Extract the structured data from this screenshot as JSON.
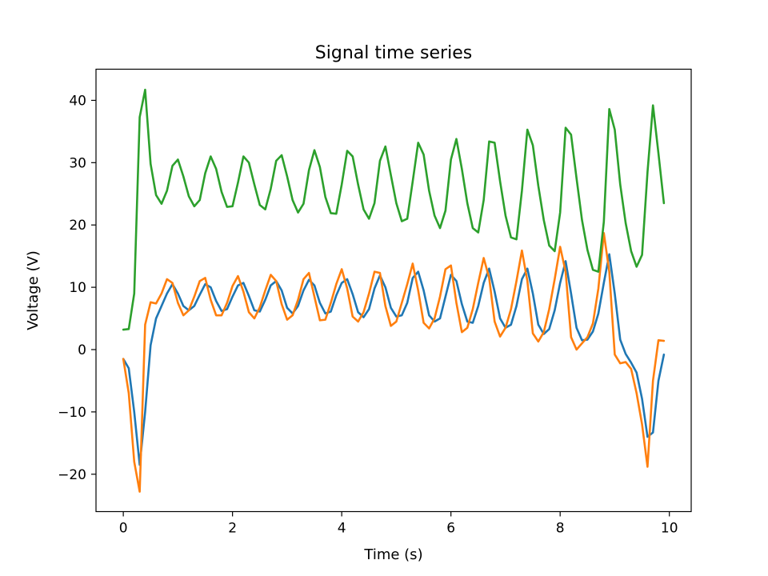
{
  "chart_data": {
    "type": "line",
    "title": "Signal time series",
    "xlabel": "Time (s)",
    "ylabel": "Voltage (V)",
    "xlim": [
      -0.5,
      10.4
    ],
    "ylim": [
      -26,
      45
    ],
    "xticks": [
      0,
      2,
      4,
      6,
      8,
      10
    ],
    "yticks": [
      -20,
      -10,
      0,
      10,
      20,
      30,
      40
    ],
    "grid": false,
    "legend": "none",
    "x": [
      0.0,
      0.1,
      0.2,
      0.3,
      0.4,
      0.5,
      0.6,
      0.7,
      0.8,
      0.9,
      1.0,
      1.1,
      1.2,
      1.3,
      1.4,
      1.5,
      1.6,
      1.7,
      1.8,
      1.9,
      2.0,
      2.1,
      2.2,
      2.3,
      2.4,
      2.5,
      2.6,
      2.7,
      2.8,
      2.9,
      3.0,
      3.1,
      3.2,
      3.3,
      3.4,
      3.5,
      3.6,
      3.7,
      3.8,
      3.9,
      4.0,
      4.1,
      4.2,
      4.3,
      4.4,
      4.5,
      4.6,
      4.7,
      4.8,
      4.9,
      5.0,
      5.1,
      5.2,
      5.3,
      5.4,
      5.5,
      5.6,
      5.7,
      5.8,
      5.9,
      6.0,
      6.1,
      6.2,
      6.3,
      6.4,
      6.5,
      6.6,
      6.7,
      6.8,
      6.9,
      7.0,
      7.1,
      7.2,
      7.3,
      7.4,
      7.5,
      7.6,
      7.7,
      7.8,
      7.9,
      8.0,
      8.1,
      8.2,
      8.3,
      8.4,
      8.5,
      8.6,
      8.7,
      8.8,
      8.9,
      9.0,
      9.1,
      9.2,
      9.3,
      9.4,
      9.5,
      9.6,
      9.7,
      9.8,
      9.9
    ],
    "series": [
      {
        "color": "#1f77b4",
        "values": [
          -1.5,
          -3.0,
          -10.0,
          -18.5,
          -10.0,
          0.7,
          5.0,
          7.0,
          9.0,
          10.5,
          9.0,
          7.0,
          6.3,
          7.0,
          8.8,
          10.5,
          10.0,
          7.8,
          6.2,
          6.5,
          8.5,
          10.3,
          10.7,
          8.6,
          6.3,
          6.1,
          8.0,
          10.3,
          11.0,
          9.5,
          6.7,
          5.8,
          7.0,
          9.5,
          11.2,
          10.3,
          7.5,
          5.8,
          6.1,
          8.7,
          10.7,
          11.3,
          8.9,
          6.0,
          5.2,
          6.5,
          9.8,
          11.9,
          10.0,
          6.7,
          5.3,
          5.5,
          7.5,
          11.5,
          12.5,
          9.5,
          5.5,
          4.5,
          5.0,
          8.5,
          12.0,
          11.0,
          7.3,
          4.5,
          4.3,
          7.0,
          10.7,
          13.0,
          9.3,
          5.0,
          3.5,
          4.0,
          7.0,
          11.3,
          13.0,
          9.0,
          4.0,
          2.5,
          3.3,
          6.3,
          10.7,
          14.2,
          9.0,
          3.5,
          1.5,
          1.6,
          2.9,
          5.8,
          10.7,
          15.3,
          9.0,
          1.6,
          -0.7,
          -2.1,
          -3.7,
          -7.9,
          -14.0,
          -13.3,
          -5.0,
          -0.8
        ]
      },
      {
        "color": "#ff7f0e",
        "values": [
          -1.5,
          -7.0,
          -18.0,
          -22.8,
          4.0,
          7.6,
          7.4,
          9.0,
          11.3,
          10.7,
          7.5,
          5.5,
          6.3,
          8.5,
          11.0,
          11.5,
          8.0,
          5.5,
          5.5,
          7.5,
          10.2,
          11.8,
          9.3,
          6.0,
          5.0,
          6.8,
          9.5,
          12.0,
          11.0,
          7.3,
          4.8,
          5.5,
          8.0,
          11.3,
          12.3,
          8.5,
          4.7,
          4.8,
          7.5,
          10.5,
          12.9,
          9.8,
          5.3,
          4.5,
          6.0,
          9.0,
          12.5,
          12.3,
          7.0,
          3.8,
          4.5,
          7.5,
          10.5,
          13.8,
          9.5,
          4.3,
          3.4,
          5.0,
          8.5,
          12.9,
          13.5,
          7.5,
          2.8,
          3.5,
          6.5,
          10.7,
          14.7,
          11.5,
          4.5,
          2.1,
          3.5,
          6.5,
          11.0,
          15.9,
          11.0,
          2.6,
          1.3,
          2.8,
          6.5,
          11.3,
          16.5,
          12.5,
          2.0,
          0.0,
          1.0,
          2.0,
          4.2,
          9.8,
          18.7,
          12.5,
          -0.8,
          -2.2,
          -2.0,
          -3.1,
          -7.0,
          -12.0,
          -18.8,
          -5.0,
          1.5,
          1.4
        ]
      },
      {
        "color": "#2ca02c",
        "values": [
          3.2,
          3.3,
          9.0,
          37.3,
          41.7,
          29.8,
          24.8,
          23.4,
          25.5,
          29.5,
          30.5,
          27.8,
          24.6,
          23.0,
          24.0,
          28.3,
          31.0,
          29.0,
          25.3,
          22.9,
          23.0,
          26.8,
          31.0,
          30.0,
          26.5,
          23.2,
          22.5,
          25.8,
          30.3,
          31.2,
          27.8,
          24.0,
          22.0,
          23.4,
          28.8,
          32.0,
          29.3,
          24.5,
          21.9,
          21.8,
          26.5,
          31.9,
          31.0,
          26.5,
          22.5,
          21.0,
          23.5,
          30.3,
          32.6,
          28.0,
          23.5,
          20.6,
          21.0,
          27.0,
          33.2,
          31.3,
          25.5,
          21.5,
          19.5,
          22.3,
          30.5,
          33.8,
          29.0,
          23.5,
          19.5,
          18.8,
          24.0,
          33.4,
          33.2,
          27.0,
          21.5,
          18.0,
          17.7,
          25.5,
          35.3,
          32.8,
          26.3,
          20.8,
          16.7,
          15.8,
          22.0,
          35.6,
          34.5,
          27.5,
          20.8,
          16.0,
          12.8,
          12.5,
          20.5,
          38.6,
          35.3,
          26.5,
          20.3,
          15.8,
          13.3,
          15.2,
          28.5,
          39.2,
          31.5,
          23.5
        ]
      }
    ]
  }
}
